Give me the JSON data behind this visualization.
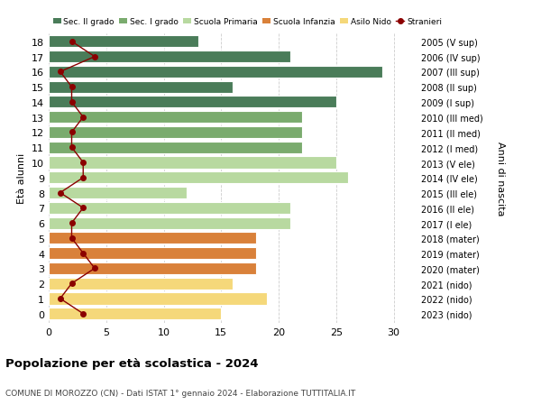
{
  "ages": [
    18,
    17,
    16,
    15,
    14,
    13,
    12,
    11,
    10,
    9,
    8,
    7,
    6,
    5,
    4,
    3,
    2,
    1,
    0
  ],
  "right_labels": [
    "2005 (V sup)",
    "2006 (IV sup)",
    "2007 (III sup)",
    "2008 (II sup)",
    "2009 (I sup)",
    "2010 (III med)",
    "2011 (II med)",
    "2012 (I med)",
    "2013 (V ele)",
    "2014 (IV ele)",
    "2015 (III ele)",
    "2016 (II ele)",
    "2017 (I ele)",
    "2018 (mater)",
    "2019 (mater)",
    "2020 (mater)",
    "2021 (nido)",
    "2022 (nido)",
    "2023 (nido)"
  ],
  "bar_values": [
    13,
    21,
    29,
    16,
    25,
    22,
    22,
    22,
    25,
    26,
    12,
    21,
    21,
    18,
    18,
    18,
    16,
    19,
    15
  ],
  "bar_colors": [
    "#4a7c59",
    "#4a7c59",
    "#4a7c59",
    "#4a7c59",
    "#4a7c59",
    "#7aab6e",
    "#7aab6e",
    "#7aab6e",
    "#b8d9a0",
    "#b8d9a0",
    "#b8d9a0",
    "#b8d9a0",
    "#b8d9a0",
    "#d9813a",
    "#d9813a",
    "#d9813a",
    "#f5d87a",
    "#f5d87a",
    "#f5d87a"
  ],
  "stranieri_values": [
    2,
    4,
    1,
    2,
    2,
    3,
    2,
    2,
    3,
    3,
    1,
    3,
    2,
    2,
    3,
    4,
    2,
    1,
    3
  ],
  "legend_labels": [
    "Sec. II grado",
    "Sec. I grado",
    "Scuola Primaria",
    "Scuola Infanzia",
    "Asilo Nido",
    "Stranieri"
  ],
  "legend_colors": [
    "#4a7c59",
    "#7aab6e",
    "#b8d9a0",
    "#d9813a",
    "#f5d87a",
    "#8b0000"
  ],
  "ylabel": "Età alunni",
  "right_ylabel": "Anni di nascita",
  "title": "Popolazione per età scolastica - 2024",
  "subtitle": "COMUNE DI MOROZZO (CN) - Dati ISTAT 1° gennaio 2024 - Elaborazione TUTTITALIA.IT",
  "xlim": [
    0,
    32
  ],
  "xticks": [
    0,
    5,
    10,
    15,
    20,
    25,
    30
  ],
  "background_color": "#ffffff",
  "grid_color": "#cccccc"
}
